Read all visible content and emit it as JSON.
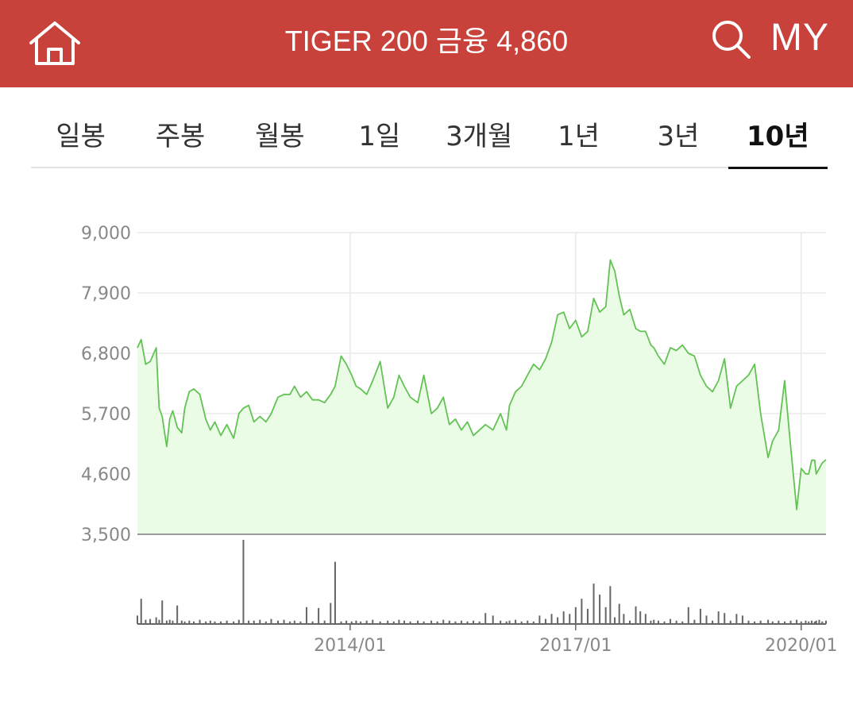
{
  "header": {
    "title": "TIGER 200 금융 4,860",
    "my_label": "MY",
    "icons": [
      "home-icon",
      "search-icon"
    ],
    "background_color": "#c8413a"
  },
  "tabs": [
    {
      "label": "일봉",
      "active": false
    },
    {
      "label": "주봉",
      "active": false
    },
    {
      "label": "월봉",
      "active": false
    },
    {
      "label": "1일",
      "active": false
    },
    {
      "label": "3개월",
      "active": false
    },
    {
      "label": "1년",
      "active": false
    },
    {
      "label": "3년",
      "active": false
    },
    {
      "label": "10년",
      "active": true
    }
  ],
  "chart_data": {
    "type": "area",
    "line_color": "#62c254",
    "fill_color": "#ebfce6",
    "volume_color": "#666666",
    "ylim": [
      3500,
      9000
    ],
    "y_ticks": [
      9000,
      7900,
      6800,
      5700,
      4600,
      3500
    ],
    "y_tick_labels": [
      "9,000",
      "7,900",
      "6,800",
      "5,700",
      "4,600",
      "3,500"
    ],
    "x_range": [
      2011.17,
      2020.33
    ],
    "x_ticks": [
      2014.0,
      2017.0,
      2020.0
    ],
    "x_tick_labels": [
      "2014/01",
      "2017/01",
      "2020/01"
    ],
    "grid": true,
    "series": [
      {
        "x": [
          2011.17,
          2011.22,
          2011.28,
          2011.34,
          2011.42,
          2011.46,
          2011.5,
          2011.56,
          2011.6,
          2011.64,
          2011.7,
          2011.76,
          2011.8,
          2011.86,
          2011.92,
          2012.0,
          2012.08,
          2012.14,
          2012.2,
          2012.28,
          2012.36,
          2012.45,
          2012.52,
          2012.58,
          2012.65,
          2012.72,
          2012.8,
          2012.88,
          2012.95,
          2013.04,
          2013.12,
          2013.2,
          2013.26,
          2013.34,
          2013.42,
          2013.5,
          2013.58,
          2013.66,
          2013.74,
          2013.8,
          2013.88,
          2013.95,
          2014.02,
          2014.08,
          2014.14,
          2014.22,
          2014.3,
          2014.4,
          2014.5,
          2014.58,
          2014.65,
          2014.72,
          2014.8,
          2014.9,
          2014.98,
          2015.08,
          2015.16,
          2015.24,
          2015.32,
          2015.4,
          2015.48,
          2015.56,
          2015.64,
          2015.72,
          2015.8,
          2015.9,
          2016.0,
          2016.08,
          2016.12,
          2016.2,
          2016.28,
          2016.36,
          2016.44,
          2016.52,
          2016.6,
          2016.68,
          2016.76,
          2016.84,
          2016.92,
          2017.0,
          2017.08,
          2017.16,
          2017.24,
          2017.32,
          2017.4,
          2017.46,
          2017.52,
          2017.58,
          2017.64,
          2017.72,
          2017.8,
          2017.86,
          2017.93,
          2018.0,
          2018.04,
          2018.1,
          2018.18,
          2018.26,
          2018.34,
          2018.42,
          2018.5,
          2018.58,
          2018.66,
          2018.74,
          2018.82,
          2018.9,
          2018.98,
          2019.06,
          2019.14,
          2019.22,
          2019.3,
          2019.38,
          2019.46,
          2019.56,
          2019.62,
          2019.7,
          2019.78,
          2019.86,
          2019.94,
          2020.0,
          2020.06,
          2020.1,
          2020.14,
          2020.18,
          2020.2,
          2020.24,
          2020.28,
          2020.33
        ],
        "y": [
          6900,
          7050,
          6600,
          6650,
          6900,
          5800,
          5650,
          5100,
          5600,
          5750,
          5450,
          5350,
          5800,
          6100,
          6150,
          6050,
          5600,
          5400,
          5550,
          5300,
          5500,
          5250,
          5700,
          5800,
          5850,
          5550,
          5650,
          5550,
          5700,
          6000,
          6050,
          6050,
          6200,
          6000,
          6100,
          5950,
          5950,
          5900,
          6050,
          6200,
          6750,
          6600,
          6400,
          6200,
          6150,
          6050,
          6300,
          6650,
          5800,
          6000,
          6400,
          6200,
          6000,
          5900,
          6400,
          5700,
          5800,
          6000,
          5500,
          5600,
          5400,
          5550,
          5300,
          5400,
          5500,
          5400,
          5700,
          5400,
          5850,
          6100,
          6200,
          6400,
          6600,
          6500,
          6700,
          7000,
          7500,
          7550,
          7250,
          7400,
          7100,
          7200,
          7800,
          7550,
          7650,
          8500,
          8300,
          7850,
          7500,
          7600,
          7250,
          7200,
          7200,
          6950,
          6900,
          6750,
          6600,
          6900,
          6850,
          6950,
          6800,
          6750,
          6400,
          6200,
          6100,
          6300,
          6700,
          5800,
          6200,
          6300,
          6400,
          6600,
          5700,
          4900,
          5200,
          5400,
          6300,
          5100,
          3950,
          4700,
          4600,
          4600,
          4850,
          4850,
          4600,
          4700,
          4800,
          4860
        ],
        "volume": [
          0.1,
          0.3,
          0.05,
          0.06,
          0.08,
          0.05,
          0.28,
          0.04,
          0.05,
          0.04,
          0.22,
          0.04,
          0.03,
          0.04,
          0.03,
          0.05,
          0.03,
          0.04,
          0.03,
          0.03,
          0.04,
          0.03,
          0.05,
          1.0,
          0.04,
          0.04,
          0.05,
          0.03,
          0.06,
          0.04,
          0.05,
          0.03,
          0.04,
          0.03,
          0.2,
          0.03,
          0.19,
          0.04,
          0.25,
          0.74,
          0.03,
          0.04,
          0.03,
          0.04,
          0.03,
          0.04,
          0.05,
          0.03,
          0.04,
          0.03,
          0.05,
          0.04,
          0.03,
          0.04,
          0.03,
          0.04,
          0.03,
          0.05,
          0.04,
          0.03,
          0.04,
          0.03,
          0.04,
          0.03,
          0.13,
          0.1,
          0.04,
          0.03,
          0.04,
          0.05,
          0.03,
          0.04,
          0.03,
          0.1,
          0.06,
          0.12,
          0.08,
          0.15,
          0.12,
          0.2,
          0.3,
          0.18,
          0.48,
          0.35,
          0.2,
          0.45,
          0.08,
          0.24,
          0.12,
          0.04,
          0.21,
          0.15,
          0.12,
          0.04,
          0.05,
          0.04,
          0.03,
          0.06,
          0.04,
          0.03,
          0.2,
          0.05,
          0.18,
          0.1,
          0.04,
          0.15,
          0.13,
          0.04,
          0.12,
          0.1,
          0.04,
          0.03,
          0.04,
          0.05,
          0.03,
          0.04,
          0.03,
          0.04,
          0.05,
          0.03,
          0.04,
          0.03,
          0.04,
          0.03,
          0.04,
          0.05,
          0.03,
          0.04
        ]
      }
    ]
  }
}
